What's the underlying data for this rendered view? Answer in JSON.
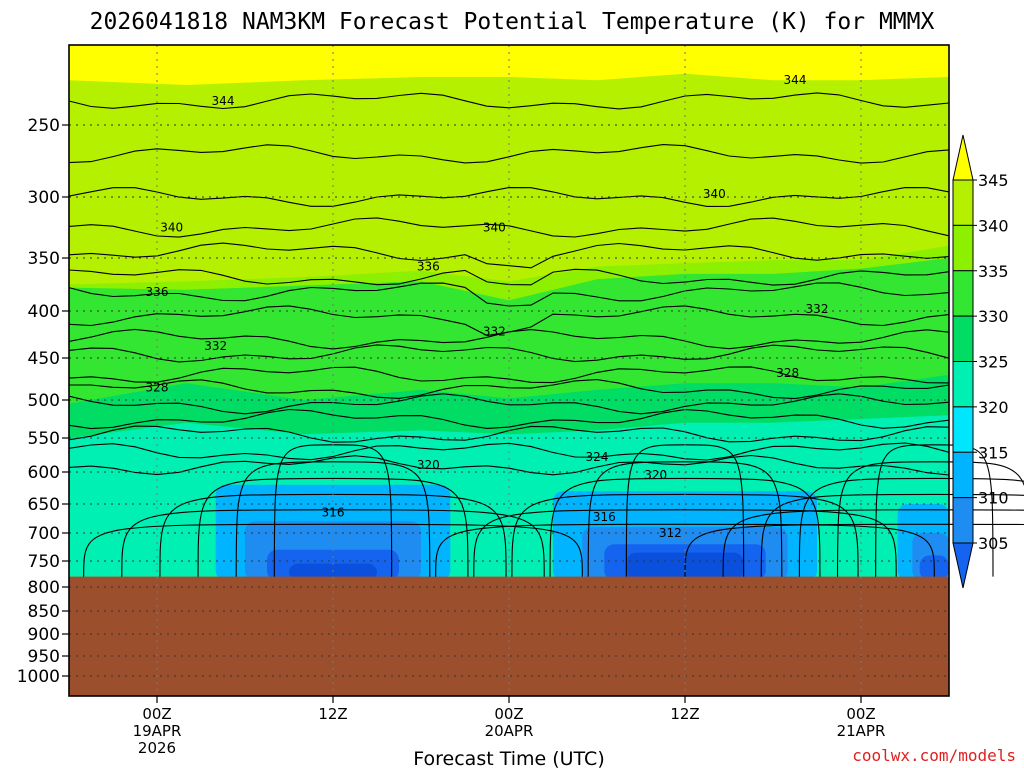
{
  "chart_data": {
    "type": "heatmap",
    "title": "2026041818 NAM3KM Forecast Potential Temperature (K) for MMMX",
    "xlabel": "Forecast Time (UTC)",
    "ylabel": "",
    "x_ticks": [
      {
        "hour": 6,
        "line1": "00Z",
        "line2": "19APR",
        "line3": "2026"
      },
      {
        "hour": 18,
        "line1": "12Z",
        "line2": "",
        "line3": ""
      },
      {
        "hour": 30,
        "line1": "00Z",
        "line2": "20APR",
        "line3": ""
      },
      {
        "hour": 42,
        "line1": "12Z",
        "line2": "",
        "line3": ""
      },
      {
        "hour": 54,
        "line1": "00Z",
        "line2": "21APR",
        "line3": ""
      }
    ],
    "xlim_hours": [
      0,
      60
    ],
    "y_ticks": [
      250,
      300,
      350,
      400,
      450,
      500,
      550,
      600,
      650,
      700,
      750,
      800,
      850,
      900,
      950,
      1000
    ],
    "ylim_hPa": [
      200,
      1020
    ],
    "surface_pressure_hPa": 780,
    "colorbar": {
      "levels": [
        305,
        310,
        315,
        320,
        325,
        330,
        335,
        340,
        345
      ],
      "colors": [
        "#1464f0",
        "#1e8cf0",
        "#00b4ff",
        "#00e6ff",
        "#00f0b4",
        "#00dc64",
        "#32e632",
        "#8cf000",
        "#b4f000",
        "#ffff00"
      ]
    },
    "contour_labels": [
      {
        "text": "344",
        "hour": 10.5,
        "p": 235
      },
      {
        "text": "344",
        "hour": 49.5,
        "p": 222
      },
      {
        "text": "340",
        "hour": 7,
        "p": 325
      },
      {
        "text": "340",
        "hour": 29,
        "p": 325
      },
      {
        "text": "340",
        "hour": 44,
        "p": 298
      },
      {
        "text": "336",
        "hour": 6,
        "p": 382
      },
      {
        "text": "336",
        "hour": 24.5,
        "p": 358
      },
      {
        "text": "332",
        "hour": 10,
        "p": 437
      },
      {
        "text": "332",
        "hour": 29,
        "p": 422
      },
      {
        "text": "332",
        "hour": 51,
        "p": 398
      },
      {
        "text": "328",
        "hour": 6,
        "p": 485
      },
      {
        "text": "328",
        "hour": 49,
        "p": 468
      },
      {
        "text": "324",
        "hour": 36,
        "p": 578
      },
      {
        "text": "320",
        "hour": 24.5,
        "p": 590
      },
      {
        "text": "320",
        "hour": 40,
        "p": 605
      },
      {
        "text": "316",
        "hour": 18,
        "p": 665
      },
      {
        "text": "316",
        "hour": 36.5,
        "p": 672
      },
      {
        "text": "312",
        "hour": 41,
        "p": 700
      }
    ],
    "layers": [
      {
        "level": ">345",
        "boundary_p": [
          [
            0,
            222
          ],
          [
            8,
            225
          ],
          [
            16,
            222
          ],
          [
            24,
            220
          ],
          [
            30,
            220
          ],
          [
            36,
            222
          ],
          [
            42,
            218
          ],
          [
            48,
            222
          ],
          [
            54,
            222
          ],
          [
            60,
            220
          ]
        ]
      },
      {
        "level": "340-345",
        "boundary_p": [
          [
            0,
            375
          ],
          [
            8,
            372
          ],
          [
            16,
            368
          ],
          [
            24,
            362
          ],
          [
            30,
            372
          ],
          [
            36,
            358
          ],
          [
            42,
            355
          ],
          [
            48,
            352
          ],
          [
            54,
            352
          ],
          [
            60,
            340
          ]
        ]
      },
      {
        "level": "335-340",
        "boundary_p": [
          [
            0,
            378
          ],
          [
            8,
            380
          ],
          [
            16,
            376
          ],
          [
            24,
            372
          ],
          [
            30,
            390
          ],
          [
            36,
            370
          ],
          [
            42,
            365
          ],
          [
            48,
            365
          ],
          [
            54,
            360
          ],
          [
            60,
            350
          ]
        ]
      },
      {
        "level": "330-335",
        "boundary_p": [
          [
            0,
            505
          ],
          [
            8,
            480
          ],
          [
            16,
            500
          ],
          [
            24,
            488
          ],
          [
            30,
            498
          ],
          [
            36,
            488
          ],
          [
            42,
            480
          ],
          [
            48,
            480
          ],
          [
            54,
            485
          ],
          [
            60,
            470
          ]
        ]
      },
      {
        "level": "325-330",
        "boundary_p": [
          [
            0,
            550
          ],
          [
            8,
            530
          ],
          [
            16,
            545
          ],
          [
            24,
            540
          ],
          [
            30,
            545
          ],
          [
            36,
            540
          ],
          [
            42,
            530
          ],
          [
            48,
            530
          ],
          [
            54,
            525
          ],
          [
            60,
            520
          ]
        ]
      },
      {
        "level": "320-325",
        "boundary_p": [
          [
            0,
            780
          ],
          [
            60,
            780
          ]
        ]
      }
    ],
    "cold_pools": [
      {
        "center_hour": 18,
        "top_p": [
          620,
          680,
          730,
          755,
          770
        ],
        "width_hours": [
          16,
          12,
          9,
          6,
          3
        ]
      },
      {
        "center_hour": 42,
        "top_p": [
          630,
          690,
          720,
          735,
          755
        ],
        "width_hours": [
          18,
          14,
          11,
          8,
          4
        ]
      },
      {
        "center_hour": 59,
        "top_p": [
          650,
          700,
          740
        ],
        "width_hours": [
          5,
          3,
          2
        ]
      }
    ]
  },
  "credit": "coolwx.com/models"
}
